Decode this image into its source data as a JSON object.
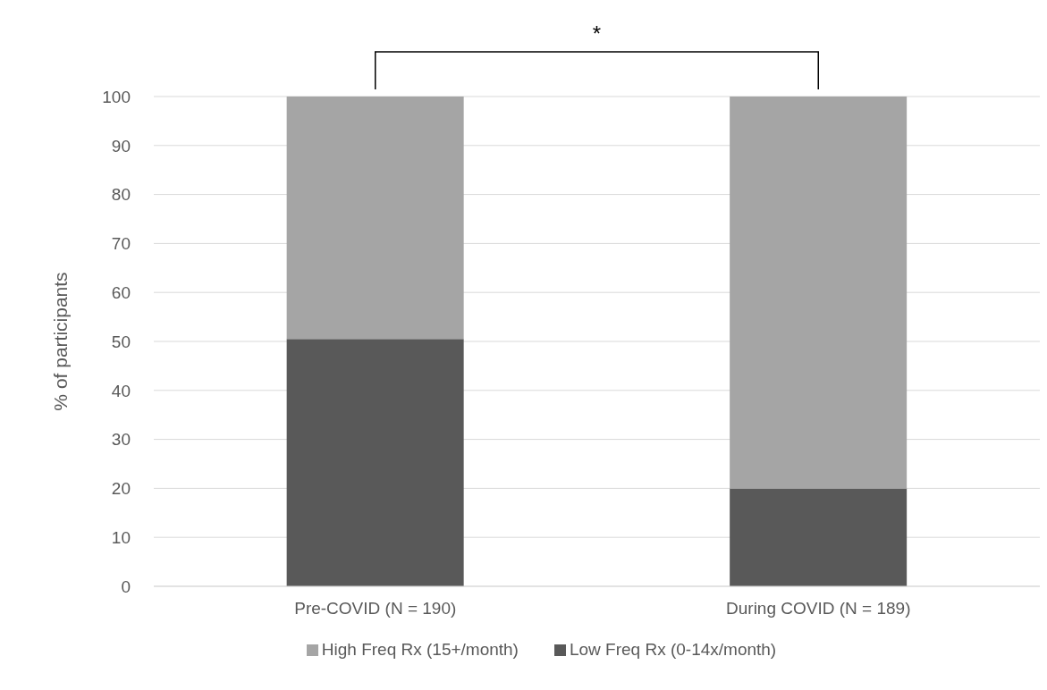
{
  "chart_data": {
    "type": "bar",
    "stacked": true,
    "ylabel": "% of participants",
    "categories": [
      "Pre-COVID (N = 190)",
      "During COVID (N = 189)"
    ],
    "series": [
      {
        "name": "Low Freq Rx (0-14x/month)",
        "color": "#595959",
        "values": [
          50.5,
          20
        ]
      },
      {
        "name": "High Freq Rx (15+/month)",
        "color": "#a5a5a5",
        "values": [
          49.5,
          80
        ]
      }
    ],
    "ylim": [
      0,
      100
    ],
    "yticks": [
      0,
      10,
      20,
      30,
      40,
      50,
      60,
      70,
      80,
      90,
      100
    ],
    "grid": "y",
    "legend": "bottom",
    "annotations": [
      "*"
    ]
  }
}
